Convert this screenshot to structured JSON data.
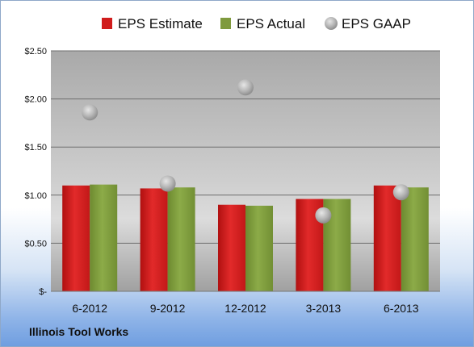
{
  "chart_data": {
    "type": "bar",
    "categories": [
      "6-2012",
      "9-2012",
      "12-2012",
      "3-2013",
      "6-2013"
    ],
    "series": [
      {
        "name": "EPS Estimate",
        "kind": "bar",
        "color": "#d01c1c",
        "values": [
          1.1,
          1.07,
          0.9,
          0.96,
          1.1
        ]
      },
      {
        "name": "EPS Actual",
        "kind": "bar",
        "color": "#7f9a3e",
        "values": [
          1.11,
          1.08,
          0.89,
          0.96,
          1.08
        ]
      },
      {
        "name": "EPS GAAP",
        "kind": "scatter",
        "color": "#b8b8b8",
        "values": [
          1.86,
          1.12,
          2.12,
          0.79,
          1.03
        ]
      }
    ],
    "yticks": [
      {
        "value": 0,
        "label": "$-"
      },
      {
        "value": 0.5,
        "label": "$0.50"
      },
      {
        "value": 1.0,
        "label": "$1.00"
      },
      {
        "value": 1.5,
        "label": "$1.50"
      },
      {
        "value": 2.0,
        "label": "$2.00"
      },
      {
        "value": 2.5,
        "label": "$2.50"
      }
    ],
    "ylim": [
      0,
      2.5
    ],
    "grid": true,
    "legend": "top"
  },
  "footer": {
    "company": "Illinois Tool Works"
  }
}
